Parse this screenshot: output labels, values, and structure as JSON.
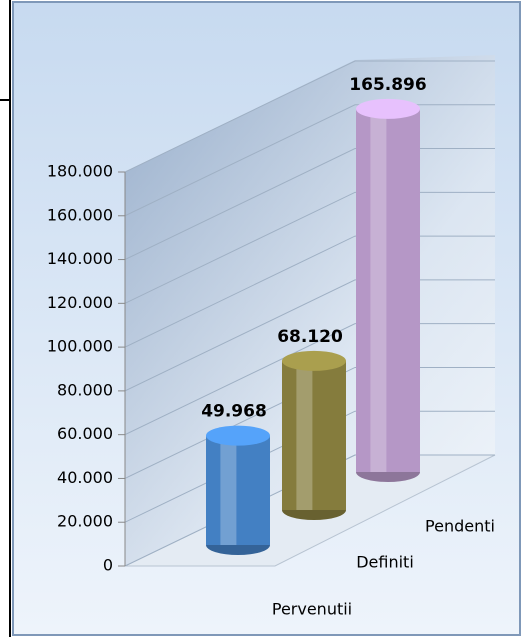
{
  "chart_data": {
    "type": "bar3d",
    "categories": [
      "Pervenutii",
      "Definiti",
      "Pendenti"
    ],
    "values": [
      49968,
      68120,
      165896
    ],
    "value_labels": [
      "49.968",
      "68.120",
      "165.896"
    ],
    "colors": [
      "#4a8ed9",
      "#948a44",
      "#c9a8dc"
    ],
    "ylim": [
      0,
      180000
    ],
    "yticks": [
      0,
      {
        "value": 20000,
        "label": "20.000"
      },
      {
        "value": 40000,
        "label": "40.000"
      },
      {
        "value": 60000,
        "label": "60.000"
      },
      {
        "value": 80000,
        "label": "80.000"
      },
      {
        "value": 100000,
        "label": "100.000"
      },
      {
        "value": 120000,
        "label": "120.000"
      },
      {
        "value": 140000,
        "label": "140.000"
      },
      {
        "value": 160000,
        "label": "160.000"
      },
      {
        "value": 180000,
        "label": "180.000"
      }
    ],
    "grid": true
  }
}
